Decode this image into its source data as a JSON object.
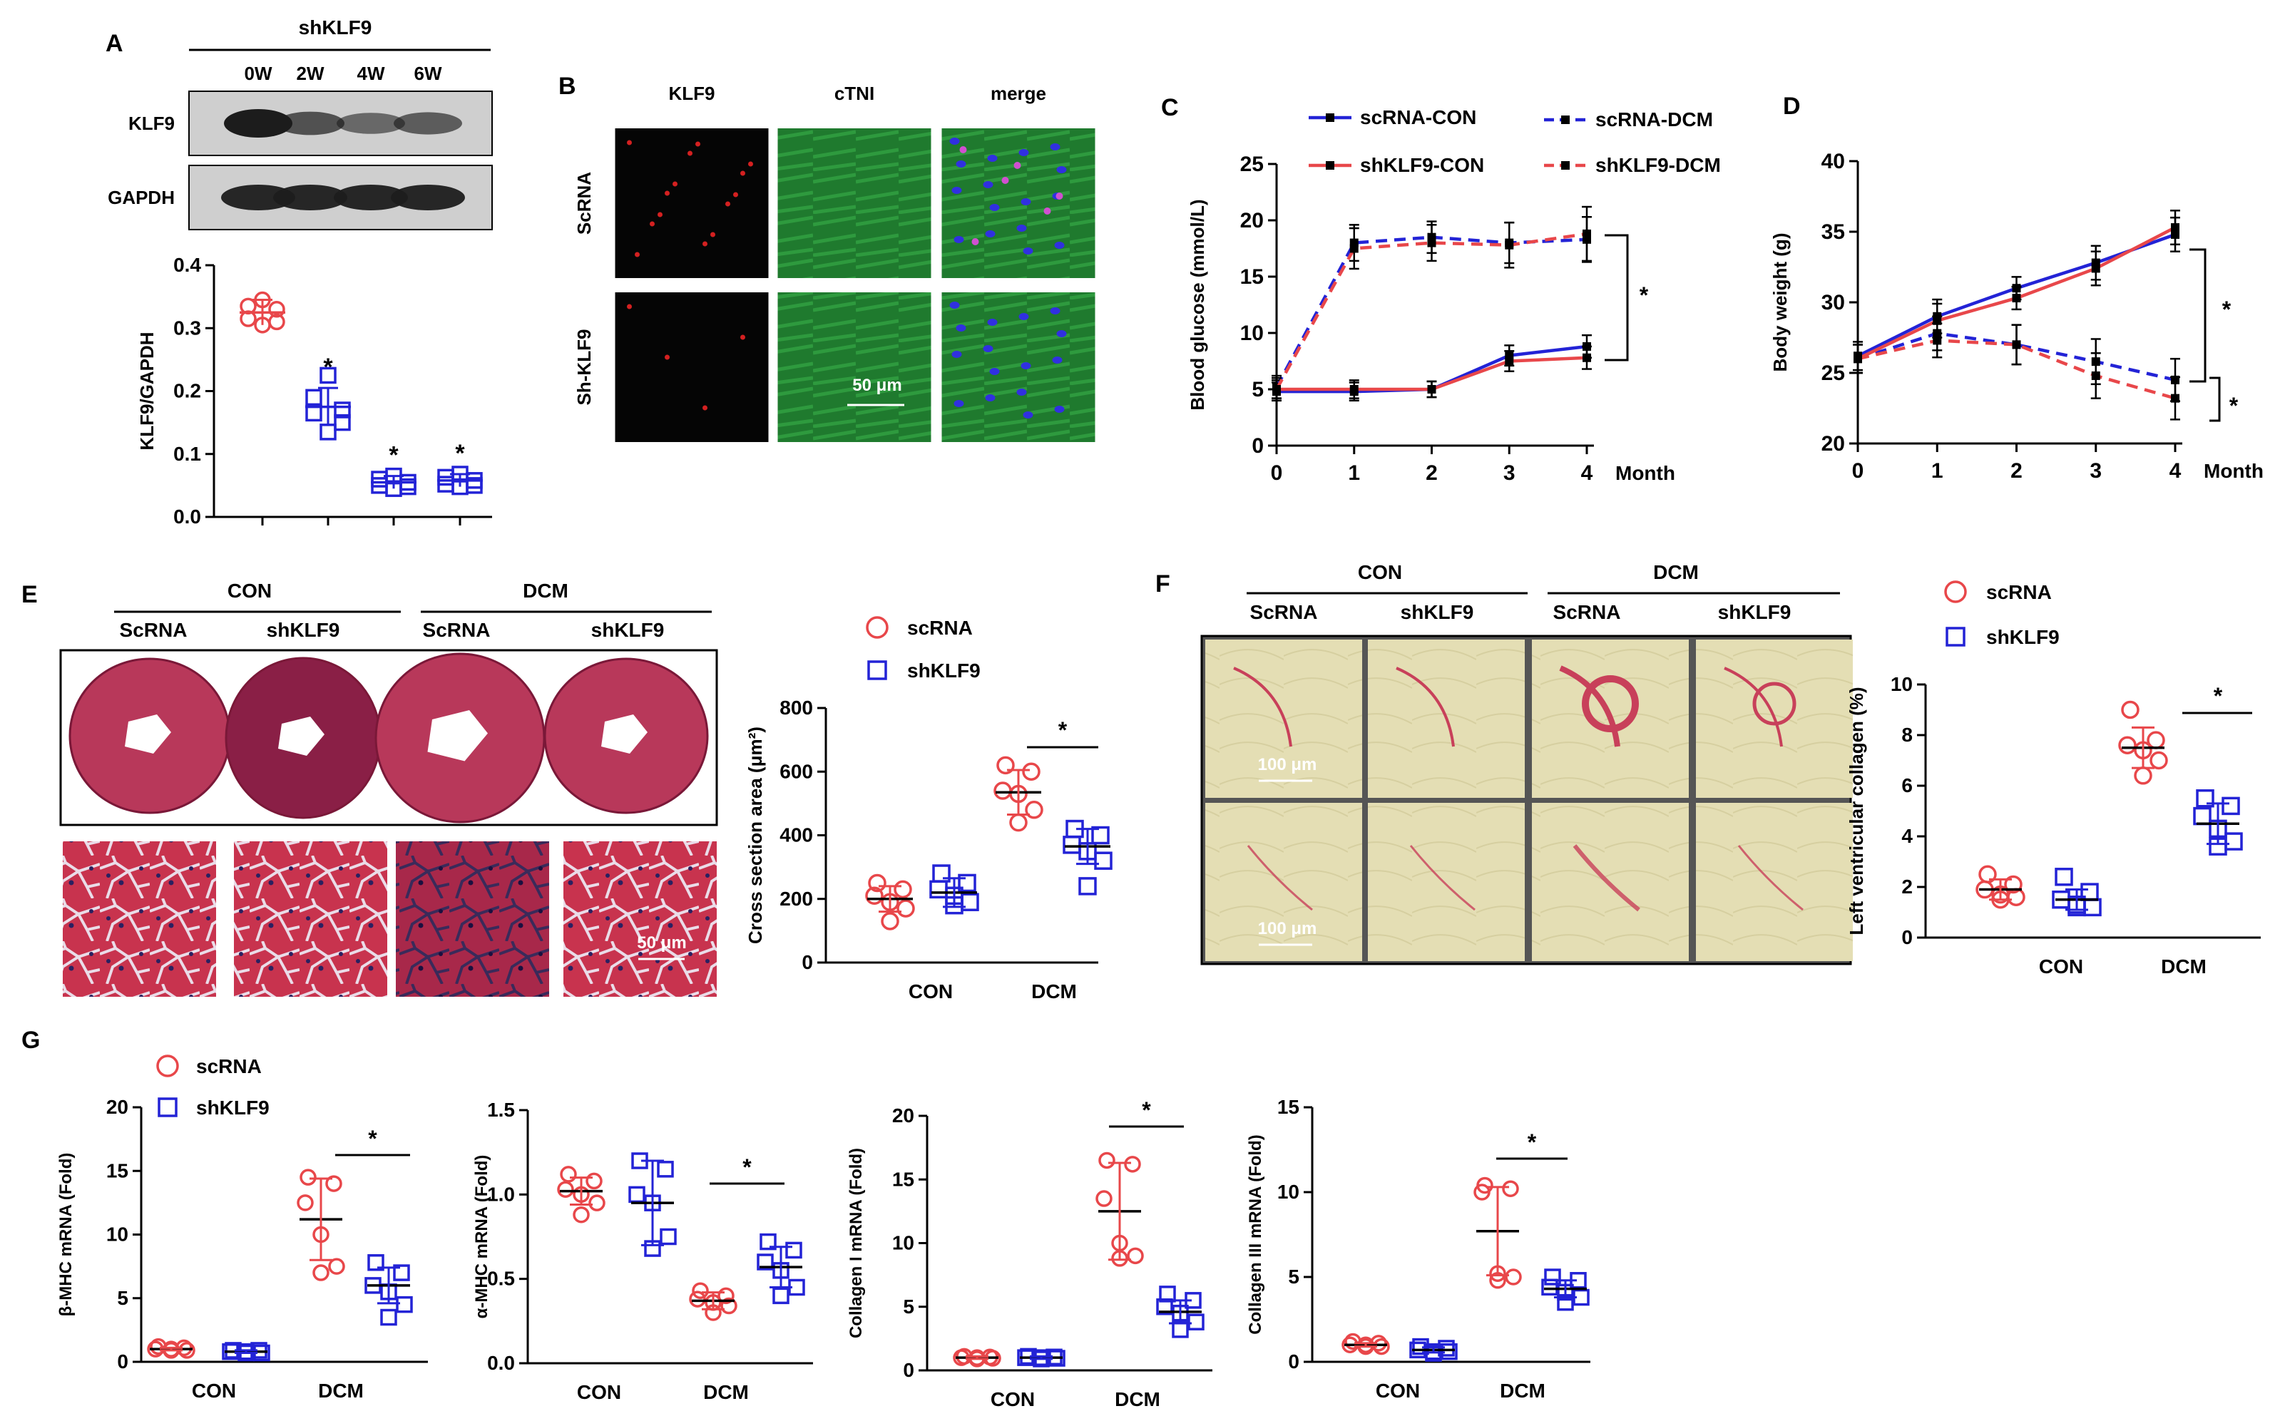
{
  "colors": {
    "red": "#e8474a",
    "blue": "#2323d6",
    "black": "#000000",
    "band": "#1c1c1c",
    "blot_bg": "#cfcfcf",
    "he_pink": "#c8334e",
    "collagen_bg": "#e7e2b8"
  },
  "panel_letters": [
    "A",
    "B",
    "C",
    "D",
    "E",
    "F",
    "G"
  ],
  "panelA": {
    "header": "shKLF9",
    "lanes": [
      "0W",
      "2W",
      "4W",
      "6W"
    ],
    "blot_rows": [
      "KLF9",
      "GAPDH"
    ],
    "band_intensity": {
      "KLF9": [
        1.0,
        0.55,
        0.35,
        0.45
      ],
      "GAPDH": [
        1,
        1,
        1,
        1
      ]
    },
    "ylabel": "KLF9/GAPDH",
    "yticks": [
      "0.0",
      "0.1",
      "0.2",
      "0.3",
      "0.4"
    ],
    "star": "*",
    "chart_data": {
      "type": "scatter",
      "categories": [
        "0W",
        "2W",
        "4W",
        "6W"
      ],
      "ylim": [
        0,
        0.4
      ],
      "ylabel": "KLF9/GAPDH",
      "groups": [
        {
          "color": "red",
          "marker": "circle",
          "mean": 0.325,
          "sd": 0.02,
          "points": [
            0.345,
            0.335,
            0.33,
            0.315,
            0.31,
            0.305
          ]
        },
        {
          "color": "blue",
          "marker": "square",
          "mean": 0.175,
          "sd": 0.03,
          "points": [
            0.225,
            0.19,
            0.17,
            0.165,
            0.15,
            0.135
          ]
        },
        {
          "color": "blue",
          "marker": "square",
          "mean": 0.055,
          "sd": 0.01,
          "points": [
            0.065,
            0.06,
            0.055,
            0.05,
            0.048,
            0.045
          ]
        },
        {
          "color": "blue",
          "marker": "square",
          "mean": 0.058,
          "sd": 0.01,
          "points": [
            0.068,
            0.063,
            0.058,
            0.052,
            0.05,
            0.048
          ]
        }
      ],
      "significance": [
        false,
        true,
        true,
        true
      ]
    }
  },
  "panelB": {
    "columns": [
      "KLF9",
      "cTNI",
      "merge"
    ],
    "rows": [
      "ScRNA",
      "Sh-KLF9"
    ],
    "scalebar": "50 μm"
  },
  "panelC": {
    "legend": [
      "scRNA-CON",
      "scRNA-DCM",
      "shKLF9-CON",
      "shKLF9-DCM"
    ],
    "star": "*",
    "chart_data": {
      "type": "line",
      "x": [
        0,
        1,
        2,
        3,
        4
      ],
      "xlabel": "Month",
      "ylabel": "Blood glucose (mmol/L)",
      "ylim": [
        0,
        25
      ],
      "yticks": [
        0,
        5,
        10,
        15,
        20,
        25
      ],
      "series": [
        {
          "name": "scRNA-CON",
          "color": "blue",
          "dash": false,
          "values": [
            4.8,
            4.8,
            5.0,
            8.0,
            8.8
          ],
          "err": [
            0.8,
            0.8,
            0.7,
            0.9,
            1.0
          ]
        },
        {
          "name": "scRNA-DCM",
          "color": "blue",
          "dash": true,
          "values": [
            5.2,
            18.0,
            18.5,
            18.0,
            18.3
          ],
          "err": [
            1.0,
            1.6,
            1.4,
            1.8,
            2.0
          ]
        },
        {
          "name": "shKLF9-CON",
          "color": "red",
          "dash": false,
          "values": [
            5.0,
            5.0,
            5.0,
            7.5,
            7.8
          ],
          "err": [
            0.8,
            0.8,
            0.7,
            0.9,
            1.0
          ]
        },
        {
          "name": "shKLF9-DCM",
          "color": "red",
          "dash": true,
          "values": [
            5.0,
            17.5,
            18.0,
            17.8,
            18.8
          ],
          "err": [
            1.0,
            1.8,
            1.6,
            2.0,
            2.4
          ]
        }
      ]
    }
  },
  "panelD": {
    "star": "*",
    "chart_data": {
      "type": "line",
      "x": [
        0,
        1,
        2,
        3,
        4
      ],
      "xlabel": "Month",
      "ylabel": "Body weight (g)",
      "ylim": [
        20,
        40
      ],
      "yticks": [
        20,
        25,
        30,
        35,
        40
      ],
      "series": [
        {
          "name": "scRNA-CON",
          "color": "blue",
          "dash": false,
          "values": [
            26.2,
            29.0,
            31.0,
            32.8,
            34.8
          ],
          "err": [
            1.0,
            1.2,
            0.8,
            1.2,
            1.2
          ]
        },
        {
          "name": "scRNA-DCM",
          "color": "blue",
          "dash": true,
          "values": [
            26.0,
            27.8,
            27.0,
            25.8,
            24.5
          ],
          "err": [
            1.0,
            1.2,
            1.4,
            1.6,
            1.5
          ]
        },
        {
          "name": "shKLF9-CON",
          "color": "red",
          "dash": false,
          "values": [
            26.0,
            28.7,
            30.3,
            32.4,
            35.3
          ],
          "err": [
            1.0,
            1.2,
            0.8,
            1.2,
            1.2
          ]
        },
        {
          "name": "shKLF9-DCM",
          "color": "red",
          "dash": true,
          "values": [
            26.0,
            27.3,
            27.0,
            24.8,
            23.2
          ],
          "err": [
            1.0,
            1.2,
            1.4,
            1.6,
            1.5
          ]
        }
      ]
    }
  },
  "panelE": {
    "groups": [
      "CON",
      "DCM"
    ],
    "subgroups": [
      "ScRNA",
      "shKLF9",
      "ScRNA",
      "shKLF9"
    ],
    "scalebar": "50 μm",
    "legend": [
      "scRNA",
      "shKLF9"
    ],
    "star": "*",
    "chart_data": {
      "type": "scatter",
      "categories": [
        "CON",
        "DCM"
      ],
      "ylabel": "Cross section area (μm²)",
      "ylim": [
        0,
        800
      ],
      "yticks": [
        0,
        200,
        400,
        600,
        800
      ],
      "groups": [
        {
          "category": "CON",
          "color": "red",
          "marker": "circle",
          "mean": 200,
          "sd": 40,
          "points": [
            250,
            230,
            210,
            190,
            170,
            130
          ]
        },
        {
          "category": "CON",
          "color": "blue",
          "marker": "square",
          "mean": 220,
          "sd": 45,
          "points": [
            280,
            250,
            230,
            210,
            190,
            180
          ]
        },
        {
          "category": "DCM",
          "color": "red",
          "marker": "circle",
          "mean": 535,
          "sd": 70,
          "points": [
            620,
            600,
            540,
            530,
            480,
            440
          ]
        },
        {
          "category": "DCM",
          "color": "blue",
          "marker": "square",
          "mean": 365,
          "sd": 55,
          "points": [
            420,
            400,
            370,
            350,
            320,
            240
          ]
        }
      ],
      "significance": "DCM"
    }
  },
  "panelF": {
    "groups": [
      "CON",
      "DCM"
    ],
    "subgroups": [
      "ScRNA",
      "shKLF9",
      "ScRNA",
      "shKLF9"
    ],
    "scalebar": "100 μm",
    "legend": [
      "scRNA",
      "shKLF9"
    ],
    "star": "*",
    "chart_data": {
      "type": "scatter",
      "categories": [
        "CON",
        "DCM"
      ],
      "ylabel": "Left ventricular collagen  (%)",
      "ylim": [
        0,
        10
      ],
      "yticks": [
        0,
        2,
        4,
        6,
        8,
        10
      ],
      "groups": [
        {
          "category": "CON",
          "color": "red",
          "marker": "circle",
          "mean": 1.9,
          "sd": 0.4,
          "points": [
            2.5,
            2.1,
            1.9,
            1.7,
            1.6,
            1.5
          ]
        },
        {
          "category": "CON",
          "color": "blue",
          "marker": "square",
          "mean": 1.5,
          "sd": 0.4,
          "points": [
            2.4,
            1.8,
            1.5,
            1.3,
            1.2,
            1.2
          ]
        },
        {
          "category": "DCM",
          "color": "red",
          "marker": "circle",
          "mean": 7.5,
          "sd": 0.8,
          "points": [
            9.0,
            7.8,
            7.6,
            7.4,
            7.0,
            6.4
          ]
        },
        {
          "category": "DCM",
          "color": "blue",
          "marker": "square",
          "mean": 4.5,
          "sd": 0.8,
          "points": [
            5.5,
            5.2,
            4.8,
            4.3,
            3.8,
            3.6
          ]
        }
      ],
      "significance": "DCM"
    }
  },
  "panelG": {
    "legend": [
      "scRNA",
      "shKLF9"
    ],
    "star": "*",
    "chart_data": [
      {
        "type": "scatter",
        "categories": [
          "CON",
          "DCM"
        ],
        "ylabel": "β-MHC mRNA (Fold)",
        "ylim": [
          0,
          20
        ],
        "yticks": [
          "0",
          "5",
          "10",
          "15",
          "20"
        ],
        "groups": [
          {
            "category": "CON",
            "color": "red",
            "marker": "circle",
            "mean": 1.0,
            "sd": 0.1,
            "points": [
              1.2,
              1.1,
              1.0,
              1.0,
              0.9,
              0.9
            ]
          },
          {
            "category": "CON",
            "color": "blue",
            "marker": "square",
            "mean": 0.8,
            "sd": 0.1,
            "points": [
              0.9,
              0.9,
              0.8,
              0.8,
              0.7,
              0.7
            ]
          },
          {
            "category": "DCM",
            "color": "red",
            "marker": "circle",
            "mean": 11.2,
            "sd": 3.2,
            "points": [
              14.5,
              14.0,
              12.5,
              10.0,
              7.5,
              7.0
            ]
          },
          {
            "category": "DCM",
            "color": "blue",
            "marker": "square",
            "mean": 6.0,
            "sd": 1.4,
            "points": [
              7.8,
              7.0,
              6.0,
              5.5,
              4.5,
              3.5
            ]
          }
        ]
      },
      {
        "type": "scatter",
        "categories": [
          "CON",
          "DCM"
        ],
        "ylabel": "α-MHC mRNA (Fold)",
        "ylim": [
          0,
          1.5
        ],
        "yticks": [
          "0.0",
          "0.5",
          "1.0",
          "1.5"
        ],
        "groups": [
          {
            "category": "CON",
            "color": "red",
            "marker": "circle",
            "mean": 1.02,
            "sd": 0.08,
            "points": [
              1.12,
              1.08,
              1.03,
              1.0,
              0.95,
              0.88
            ]
          },
          {
            "category": "CON",
            "color": "blue",
            "marker": "square",
            "mean": 0.95,
            "sd": 0.25,
            "points": [
              1.2,
              1.15,
              1.0,
              0.95,
              0.75,
              0.68
            ]
          },
          {
            "category": "DCM",
            "color": "red",
            "marker": "circle",
            "mean": 0.37,
            "sd": 0.05,
            "points": [
              0.43,
              0.4,
              0.38,
              0.36,
              0.34,
              0.3
            ]
          },
          {
            "category": "DCM",
            "color": "blue",
            "marker": "square",
            "mean": 0.57,
            "sd": 0.12,
            "points": [
              0.72,
              0.67,
              0.6,
              0.55,
              0.45,
              0.4
            ]
          }
        ]
      },
      {
        "type": "scatter",
        "categories": [
          "CON",
          "DCM"
        ],
        "ylabel": "Collagen I mRNA (Fold)",
        "ylim": [
          0,
          20
        ],
        "yticks": [
          "0",
          "5",
          "10",
          "15",
          "20"
        ],
        "groups": [
          {
            "category": "CON",
            "color": "red",
            "marker": "circle",
            "mean": 1.0,
            "sd": 0.1,
            "points": [
              1.1,
              1.05,
              1.0,
              1.0,
              0.95,
              0.9
            ]
          },
          {
            "category": "CON",
            "color": "blue",
            "marker": "square",
            "mean": 1.0,
            "sd": 0.1,
            "points": [
              1.1,
              1.05,
              1.0,
              1.0,
              0.95,
              0.9
            ]
          },
          {
            "category": "DCM",
            "color": "red",
            "marker": "circle",
            "mean": 12.5,
            "sd": 3.8,
            "points": [
              16.5,
              16.2,
              13.5,
              10.0,
              9.0,
              8.8
            ]
          },
          {
            "category": "DCM",
            "color": "blue",
            "marker": "square",
            "mean": 4.6,
            "sd": 0.9,
            "points": [
              6.0,
              5.5,
              5.0,
              4.5,
              3.8,
              3.2
            ]
          }
        ]
      },
      {
        "type": "scatter",
        "categories": [
          "CON",
          "DCM"
        ],
        "ylabel": "Collagen III mRNA (Fold)",
        "ylim": [
          0,
          15
        ],
        "yticks": [
          "0",
          "5",
          "10",
          "15"
        ],
        "groups": [
          {
            "category": "CON",
            "color": "red",
            "marker": "circle",
            "mean": 1.0,
            "sd": 0.1,
            "points": [
              1.2,
              1.1,
              1.0,
              1.0,
              0.9,
              0.9
            ]
          },
          {
            "category": "CON",
            "color": "blue",
            "marker": "square",
            "mean": 0.7,
            "sd": 0.15,
            "points": [
              0.9,
              0.8,
              0.7,
              0.6,
              0.6,
              0.5
            ]
          },
          {
            "category": "DCM",
            "color": "red",
            "marker": "circle",
            "mean": 7.7,
            "sd": 2.6,
            "points": [
              10.4,
              10.2,
              10.0,
              5.2,
              5.0,
              4.8
            ]
          },
          {
            "category": "DCM",
            "color": "blue",
            "marker": "square",
            "mean": 4.3,
            "sd": 0.5,
            "points": [
              5.0,
              4.8,
              4.4,
              4.1,
              3.8,
              3.5
            ]
          }
        ]
      }
    ]
  }
}
